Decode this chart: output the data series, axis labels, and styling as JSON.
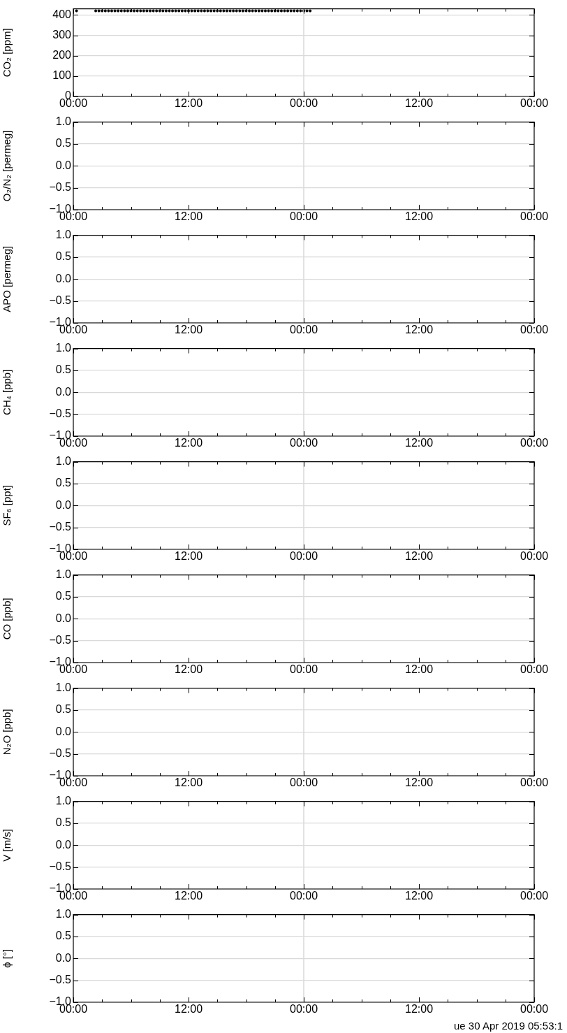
{
  "chart_data": [
    {
      "type": "scatter",
      "ylabel": "CO₂ [ppm]",
      "marker": "circle",
      "grid": "y",
      "xlim": [
        "2019-04-29T00:00",
        "2019-05-01T00:00"
      ],
      "xticks": [
        {
          "value": "2019-04-29T00:00",
          "label": "00:00"
        },
        {
          "value": "2019-04-29T03:00",
          "label": null
        },
        {
          "value": "2019-04-29T06:00",
          "label": null
        },
        {
          "value": "2019-04-29T09:00",
          "label": null
        },
        {
          "value": "2019-04-29T12:00",
          "label": "12:00"
        },
        {
          "value": "2019-04-29T15:00",
          "label": null
        },
        {
          "value": "2019-04-29T18:00",
          "label": null
        },
        {
          "value": "2019-04-29T21:00",
          "label": null
        },
        {
          "value": "2019-04-30T00:00",
          "label": "00:00"
        },
        {
          "value": "2019-04-30T03:00",
          "label": null
        },
        {
          "value": "2019-04-30T06:00",
          "label": null
        },
        {
          "value": "2019-04-30T09:00",
          "label": null
        },
        {
          "value": "2019-04-30T12:00",
          "label": "12:00"
        },
        {
          "value": "2019-04-30T15:00",
          "label": null
        },
        {
          "value": "2019-04-30T18:00",
          "label": null
        },
        {
          "value": "2019-04-30T21:00",
          "label": null
        },
        {
          "value": "2019-05-01T00:00",
          "label": "00:00"
        }
      ],
      "ylim": [
        0,
        430
      ],
      "yticks": [
        0,
        100,
        200,
        300,
        400
      ],
      "ref_lines": [
        {
          "axis": "x",
          "value": "2019-04-30T00:00",
          "color": "#d9d9d9"
        }
      ],
      "series": [
        {
          "color": "#000000",
          "x": [
            "2019-04-29T00:20",
            "2019-04-29T02:20",
            "2019-04-29T02:40",
            "2019-04-29T03:00",
            "2019-04-29T03:20",
            "2019-04-29T03:40",
            "2019-04-29T04:00",
            "2019-04-29T04:20",
            "2019-04-29T04:40",
            "2019-04-29T05:00",
            "2019-04-29T05:20",
            "2019-04-29T05:40",
            "2019-04-29T06:00",
            "2019-04-29T06:20",
            "2019-04-29T06:40",
            "2019-04-29T07:00",
            "2019-04-29T07:20",
            "2019-04-29T07:40",
            "2019-04-29T08:00",
            "2019-04-29T08:20",
            "2019-04-29T08:40",
            "2019-04-29T09:00",
            "2019-04-29T09:20",
            "2019-04-29T09:40",
            "2019-04-29T10:00",
            "2019-04-29T10:20",
            "2019-04-29T10:40",
            "2019-04-29T11:00",
            "2019-04-29T11:20",
            "2019-04-29T11:40",
            "2019-04-29T12:00",
            "2019-04-29T12:20",
            "2019-04-29T12:40",
            "2019-04-29T13:00",
            "2019-04-29T13:20",
            "2019-04-29T13:40",
            "2019-04-29T14:00",
            "2019-04-29T14:20",
            "2019-04-29T14:40",
            "2019-04-29T15:00",
            "2019-04-29T15:20",
            "2019-04-29T15:40",
            "2019-04-29T16:00",
            "2019-04-29T16:20",
            "2019-04-29T16:40",
            "2019-04-29T17:00",
            "2019-04-29T17:20",
            "2019-04-29T17:40",
            "2019-04-29T18:00",
            "2019-04-29T18:20",
            "2019-04-29T18:40",
            "2019-04-29T19:00",
            "2019-04-29T19:20",
            "2019-04-29T19:40",
            "2019-04-29T20:00",
            "2019-04-29T20:20",
            "2019-04-29T20:40",
            "2019-04-29T21:00",
            "2019-04-29T21:20",
            "2019-04-29T21:40",
            "2019-04-29T22:00",
            "2019-04-29T22:20",
            "2019-04-29T22:40",
            "2019-04-29T23:00",
            "2019-04-29T23:20",
            "2019-04-29T23:40",
            "2019-04-30T00:00",
            "2019-04-30T00:20",
            "2019-04-30T00:40"
          ],
          "values": [
            420,
            420,
            420,
            420,
            420,
            420,
            420,
            420,
            420,
            420,
            420,
            420,
            420,
            420,
            420,
            420,
            420,
            420,
            420,
            420,
            420,
            420,
            420,
            420,
            420,
            420,
            420,
            420,
            420,
            420,
            420,
            420,
            420,
            420,
            420,
            420,
            420,
            420,
            420,
            420,
            420,
            420,
            420,
            420,
            420,
            420,
            420,
            420,
            420,
            420,
            420,
            420,
            420,
            420,
            420,
            420,
            420,
            420,
            420,
            420,
            420,
            420,
            420,
            420,
            420,
            420,
            420,
            420,
            420
          ]
        }
      ]
    },
    {
      "type": "scatter",
      "ylabel": "O₂/N₂ [permeg]",
      "grid": "y",
      "xlim": [
        "2019-04-29T00:00",
        "2019-05-01T00:00"
      ],
      "xticks": [
        {
          "value": "2019-04-29T00:00",
          "label": "00:00"
        },
        {
          "value": "2019-04-29T03:00",
          "label": null
        },
        {
          "value": "2019-04-29T06:00",
          "label": null
        },
        {
          "value": "2019-04-29T09:00",
          "label": null
        },
        {
          "value": "2019-04-29T12:00",
          "label": "12:00"
        },
        {
          "value": "2019-04-29T15:00",
          "label": null
        },
        {
          "value": "2019-04-29T18:00",
          "label": null
        },
        {
          "value": "2019-04-29T21:00",
          "label": null
        },
        {
          "value": "2019-04-30T00:00",
          "label": "00:00"
        },
        {
          "value": "2019-04-30T03:00",
          "label": null
        },
        {
          "value": "2019-04-30T06:00",
          "label": null
        },
        {
          "value": "2019-04-30T09:00",
          "label": null
        },
        {
          "value": "2019-04-30T12:00",
          "label": "12:00"
        },
        {
          "value": "2019-04-30T15:00",
          "label": null
        },
        {
          "value": "2019-04-30T18:00",
          "label": null
        },
        {
          "value": "2019-04-30T21:00",
          "label": null
        },
        {
          "value": "2019-05-01T00:00",
          "label": "00:00"
        }
      ],
      "ylim": [
        -1,
        1
      ],
      "yticks": [
        {
          "value": -1,
          "label": "−1.0"
        },
        {
          "value": -0.5,
          "label": "−0.5"
        },
        {
          "value": 0,
          "label": "0.0"
        },
        {
          "value": 0.5,
          "label": "0.5"
        },
        {
          "value": 1,
          "label": "1.0"
        }
      ],
      "ref_lines": [
        {
          "axis": "x",
          "value": "2019-04-30T00:00",
          "color": "#d9d9d9"
        }
      ]
    },
    {
      "type": "scatter",
      "ylabel": "APO [permeg]",
      "grid": "y",
      "xlim": [
        "2019-04-29T00:00",
        "2019-05-01T00:00"
      ],
      "xticks": [
        {
          "value": "2019-04-29T00:00",
          "label": "00:00"
        },
        {
          "value": "2019-04-29T03:00",
          "label": null
        },
        {
          "value": "2019-04-29T06:00",
          "label": null
        },
        {
          "value": "2019-04-29T09:00",
          "label": null
        },
        {
          "value": "2019-04-29T12:00",
          "label": "12:00"
        },
        {
          "value": "2019-04-29T15:00",
          "label": null
        },
        {
          "value": "2019-04-29T18:00",
          "label": null
        },
        {
          "value": "2019-04-29T21:00",
          "label": null
        },
        {
          "value": "2019-04-30T00:00",
          "label": "00:00"
        },
        {
          "value": "2019-04-30T03:00",
          "label": null
        },
        {
          "value": "2019-04-30T06:00",
          "label": null
        },
        {
          "value": "2019-04-30T09:00",
          "label": null
        },
        {
          "value": "2019-04-30T12:00",
          "label": "12:00"
        },
        {
          "value": "2019-04-30T15:00",
          "label": null
        },
        {
          "value": "2019-04-30T18:00",
          "label": null
        },
        {
          "value": "2019-04-30T21:00",
          "label": null
        },
        {
          "value": "2019-05-01T00:00",
          "label": "00:00"
        }
      ],
      "ylim": [
        -1,
        1
      ],
      "yticks": [
        {
          "value": -1,
          "label": "−1.0"
        },
        {
          "value": -0.5,
          "label": "−0.5"
        },
        {
          "value": 0,
          "label": "0.0"
        },
        {
          "value": 0.5,
          "label": "0.5"
        },
        {
          "value": 1,
          "label": "1.0"
        }
      ],
      "ref_lines": [
        {
          "axis": "x",
          "value": "2019-04-30T00:00",
          "color": "#d9d9d9"
        }
      ]
    },
    {
      "type": "scatter",
      "ylabel": "CH₄ [ppb]",
      "grid": "y",
      "xlim": [
        "2019-04-29T00:00",
        "2019-05-01T00:00"
      ],
      "xticks": [
        {
          "value": "2019-04-29T00:00",
          "label": "00:00"
        },
        {
          "value": "2019-04-29T03:00",
          "label": null
        },
        {
          "value": "2019-04-29T06:00",
          "label": null
        },
        {
          "value": "2019-04-29T09:00",
          "label": null
        },
        {
          "value": "2019-04-29T12:00",
          "label": "12:00"
        },
        {
          "value": "2019-04-29T15:00",
          "label": null
        },
        {
          "value": "2019-04-29T18:00",
          "label": null
        },
        {
          "value": "2019-04-29T21:00",
          "label": null
        },
        {
          "value": "2019-04-30T00:00",
          "label": "00:00"
        },
        {
          "value": "2019-04-30T03:00",
          "label": null
        },
        {
          "value": "2019-04-30T06:00",
          "label": null
        },
        {
          "value": "2019-04-30T09:00",
          "label": null
        },
        {
          "value": "2019-04-30T12:00",
          "label": "12:00"
        },
        {
          "value": "2019-04-30T15:00",
          "label": null
        },
        {
          "value": "2019-04-30T18:00",
          "label": null
        },
        {
          "value": "2019-04-30T21:00",
          "label": null
        },
        {
          "value": "2019-05-01T00:00",
          "label": "00:00"
        }
      ],
      "ylim": [
        -1,
        1
      ],
      "yticks": [
        {
          "value": -1,
          "label": "−1.0"
        },
        {
          "value": -0.5,
          "label": "−0.5"
        },
        {
          "value": 0,
          "label": "0.0"
        },
        {
          "value": 0.5,
          "label": "0.5"
        },
        {
          "value": 1,
          "label": "1.0"
        }
      ],
      "ref_lines": [
        {
          "axis": "x",
          "value": "2019-04-30T00:00",
          "color": "#d9d9d9"
        }
      ]
    },
    {
      "type": "scatter",
      "ylabel": "SF₆ [ppt]",
      "grid": "y",
      "xlim": [
        "2019-04-29T00:00",
        "2019-05-01T00:00"
      ],
      "xticks": [
        {
          "value": "2019-04-29T00:00",
          "label": "00:00"
        },
        {
          "value": "2019-04-29T03:00",
          "label": null
        },
        {
          "value": "2019-04-29T06:00",
          "label": null
        },
        {
          "value": "2019-04-29T09:00",
          "label": null
        },
        {
          "value": "2019-04-29T12:00",
          "label": "12:00"
        },
        {
          "value": "2019-04-29T15:00",
          "label": null
        },
        {
          "value": "2019-04-29T18:00",
          "label": null
        },
        {
          "value": "2019-04-29T21:00",
          "label": null
        },
        {
          "value": "2019-04-30T00:00",
          "label": "00:00"
        },
        {
          "value": "2019-04-30T03:00",
          "label": null
        },
        {
          "value": "2019-04-30T06:00",
          "label": null
        },
        {
          "value": "2019-04-30T09:00",
          "label": null
        },
        {
          "value": "2019-04-30T12:00",
          "label": "12:00"
        },
        {
          "value": "2019-04-30T15:00",
          "label": null
        },
        {
          "value": "2019-04-30T18:00",
          "label": null
        },
        {
          "value": "2019-04-30T21:00",
          "label": null
        },
        {
          "value": "2019-05-01T00:00",
          "label": "00:00"
        }
      ],
      "ylim": [
        -1,
        1
      ],
      "yticks": [
        {
          "value": -1,
          "label": "−1.0"
        },
        {
          "value": -0.5,
          "label": "−0.5"
        },
        {
          "value": 0,
          "label": "0.0"
        },
        {
          "value": 0.5,
          "label": "0.5"
        },
        {
          "value": 1,
          "label": "1.0"
        }
      ],
      "ref_lines": [
        {
          "axis": "x",
          "value": "2019-04-30T00:00",
          "color": "#d9d9d9"
        }
      ]
    },
    {
      "type": "scatter",
      "ylabel": "CO [ppb]",
      "grid": "y",
      "xlim": [
        "2019-04-29T00:00",
        "2019-05-01T00:00"
      ],
      "xticks": [
        {
          "value": "2019-04-29T00:00",
          "label": "00:00"
        },
        {
          "value": "2019-04-29T03:00",
          "label": null
        },
        {
          "value": "2019-04-29T06:00",
          "label": null
        },
        {
          "value": "2019-04-29T09:00",
          "label": null
        },
        {
          "value": "2019-04-29T12:00",
          "label": "12:00"
        },
        {
          "value": "2019-04-29T15:00",
          "label": null
        },
        {
          "value": "2019-04-29T18:00",
          "label": null
        },
        {
          "value": "2019-04-29T21:00",
          "label": null
        },
        {
          "value": "2019-04-30T00:00",
          "label": "00:00"
        },
        {
          "value": "2019-04-30T03:00",
          "label": null
        },
        {
          "value": "2019-04-30T06:00",
          "label": null
        },
        {
          "value": "2019-04-30T09:00",
          "label": null
        },
        {
          "value": "2019-04-30T12:00",
          "label": "12:00"
        },
        {
          "value": "2019-04-30T15:00",
          "label": null
        },
        {
          "value": "2019-04-30T18:00",
          "label": null
        },
        {
          "value": "2019-04-30T21:00",
          "label": null
        },
        {
          "value": "2019-05-01T00:00",
          "label": "00:00"
        }
      ],
      "ylim": [
        -1,
        1
      ],
      "yticks": [
        {
          "value": -1,
          "label": "−1.0"
        },
        {
          "value": -0.5,
          "label": "−0.5"
        },
        {
          "value": 0,
          "label": "0.0"
        },
        {
          "value": 0.5,
          "label": "0.5"
        },
        {
          "value": 1,
          "label": "1.0"
        }
      ],
      "ref_lines": [
        {
          "axis": "x",
          "value": "2019-04-30T00:00",
          "color": "#d9d9d9"
        }
      ]
    },
    {
      "type": "scatter",
      "ylabel": "N₂O [ppb]",
      "grid": "y",
      "xlim": [
        "2019-04-29T00:00",
        "2019-05-01T00:00"
      ],
      "xticks": [
        {
          "value": "2019-04-29T00:00",
          "label": "00:00"
        },
        {
          "value": "2019-04-29T03:00",
          "label": null
        },
        {
          "value": "2019-04-29T06:00",
          "label": null
        },
        {
          "value": "2019-04-29T09:00",
          "label": null
        },
        {
          "value": "2019-04-29T12:00",
          "label": "12:00"
        },
        {
          "value": "2019-04-29T15:00",
          "label": null
        },
        {
          "value": "2019-04-29T18:00",
          "label": null
        },
        {
          "value": "2019-04-29T21:00",
          "label": null
        },
        {
          "value": "2019-04-30T00:00",
          "label": "00:00"
        },
        {
          "value": "2019-04-30T03:00",
          "label": null
        },
        {
          "value": "2019-04-30T06:00",
          "label": null
        },
        {
          "value": "2019-04-30T09:00",
          "label": null
        },
        {
          "value": "2019-04-30T12:00",
          "label": "12:00"
        },
        {
          "value": "2019-04-30T15:00",
          "label": null
        },
        {
          "value": "2019-04-30T18:00",
          "label": null
        },
        {
          "value": "2019-04-30T21:00",
          "label": null
        },
        {
          "value": "2019-05-01T00:00",
          "label": "00:00"
        }
      ],
      "ylim": [
        -1,
        1
      ],
      "yticks": [
        {
          "value": -1,
          "label": "−1.0"
        },
        {
          "value": -0.5,
          "label": "−0.5"
        },
        {
          "value": 0,
          "label": "0.0"
        },
        {
          "value": 0.5,
          "label": "0.5"
        },
        {
          "value": 1,
          "label": "1.0"
        }
      ],
      "ref_lines": [
        {
          "axis": "x",
          "value": "2019-04-30T00:00",
          "color": "#d9d9d9"
        }
      ]
    },
    {
      "type": "scatter",
      "ylabel": "V [m/s]",
      "grid": "y",
      "xlim": [
        "2019-04-29T00:00",
        "2019-05-01T00:00"
      ],
      "xticks": [
        {
          "value": "2019-04-29T00:00",
          "label": "00:00"
        },
        {
          "value": "2019-04-29T03:00",
          "label": null
        },
        {
          "value": "2019-04-29T06:00",
          "label": null
        },
        {
          "value": "2019-04-29T09:00",
          "label": null
        },
        {
          "value": "2019-04-29T12:00",
          "label": "12:00"
        },
        {
          "value": "2019-04-29T15:00",
          "label": null
        },
        {
          "value": "2019-04-29T18:00",
          "label": null
        },
        {
          "value": "2019-04-29T21:00",
          "label": null
        },
        {
          "value": "2019-04-30T00:00",
          "label": "00:00"
        },
        {
          "value": "2019-04-30T03:00",
          "label": null
        },
        {
          "value": "2019-04-30T06:00",
          "label": null
        },
        {
          "value": "2019-04-30T09:00",
          "label": null
        },
        {
          "value": "2019-04-30T12:00",
          "label": "12:00"
        },
        {
          "value": "2019-04-30T15:00",
          "label": null
        },
        {
          "value": "2019-04-30T18:00",
          "label": null
        },
        {
          "value": "2019-04-30T21:00",
          "label": null
        },
        {
          "value": "2019-05-01T00:00",
          "label": "00:00"
        }
      ],
      "ylim": [
        -1,
        1
      ],
      "yticks": [
        {
          "value": -1,
          "label": "−1.0"
        },
        {
          "value": -0.5,
          "label": "−0.5"
        },
        {
          "value": 0,
          "label": "0.0"
        },
        {
          "value": 0.5,
          "label": "0.5"
        },
        {
          "value": 1,
          "label": "1.0"
        }
      ],
      "ref_lines": [
        {
          "axis": "x",
          "value": "2019-04-30T00:00",
          "color": "#d9d9d9"
        }
      ]
    },
    {
      "type": "scatter",
      "ylabel": "ϕ [°]",
      "grid": "y",
      "xlim": [
        "2019-04-29T00:00",
        "2019-05-01T00:00"
      ],
      "xticks": [
        {
          "value": "2019-04-29T00:00",
          "label": "00:00"
        },
        {
          "value": "2019-04-29T03:00",
          "label": null
        },
        {
          "value": "2019-04-29T06:00",
          "label": null
        },
        {
          "value": "2019-04-29T09:00",
          "label": null
        },
        {
          "value": "2019-04-29T12:00",
          "label": "12:00"
        },
        {
          "value": "2019-04-29T15:00",
          "label": null
        },
        {
          "value": "2019-04-29T18:00",
          "label": null
        },
        {
          "value": "2019-04-29T21:00",
          "label": null
        },
        {
          "value": "2019-04-30T00:00",
          "label": "00:00"
        },
        {
          "value": "2019-04-30T03:00",
          "label": null
        },
        {
          "value": "2019-04-30T06:00",
          "label": null
        },
        {
          "value": "2019-04-30T09:00",
          "label": null
        },
        {
          "value": "2019-04-30T12:00",
          "label": "12:00"
        },
        {
          "value": "2019-04-30T15:00",
          "label": null
        },
        {
          "value": "2019-04-30T18:00",
          "label": null
        },
        {
          "value": "2019-04-30T21:00",
          "label": null
        },
        {
          "value": "2019-05-01T00:00",
          "label": "00:00"
        }
      ],
      "ylim": [
        -1,
        1
      ],
      "yticks": [
        {
          "value": -1,
          "label": "−1.0"
        },
        {
          "value": -0.5,
          "label": "−0.5"
        },
        {
          "value": 0,
          "label": "0.0"
        },
        {
          "value": 0.5,
          "label": "0.5"
        },
        {
          "value": 1,
          "label": "1.0"
        }
      ],
      "ref_lines": [
        {
          "axis": "x",
          "value": "2019-04-30T00:00",
          "color": "#d9d9d9"
        }
      ],
      "annotations": [
        "ue 30 Apr 2019 05:53:1"
      ]
    }
  ]
}
